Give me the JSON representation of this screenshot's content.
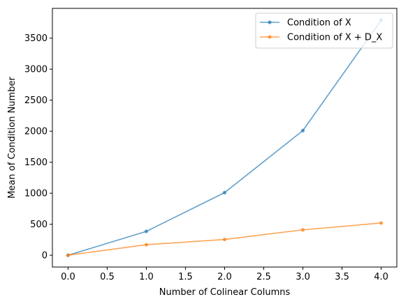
{
  "chart_data": {
    "type": "line",
    "xlabel": "Number of Colinear Columns",
    "ylabel": "Mean of Condition Number",
    "x": [
      0,
      1,
      2,
      3,
      4
    ],
    "series": [
      {
        "name": "Condition of X",
        "color": "#1f77b4",
        "values": [
          0,
          385,
          1010,
          2010,
          3790
        ]
      },
      {
        "name": "Condition of X + D_X",
        "color": "#ff7f0e",
        "values": [
          0,
          170,
          255,
          410,
          520
        ]
      }
    ],
    "xlim": [
      -0.2,
      4.2
    ],
    "ylim": [
      -190,
      3980
    ],
    "xticks": [
      0.0,
      0.5,
      1.0,
      1.5,
      2.0,
      2.5,
      3.0,
      3.5,
      4.0
    ],
    "xtick_labels": [
      "0.0",
      "0.5",
      "1.0",
      "1.5",
      "2.0",
      "2.5",
      "3.0",
      "3.5",
      "4.0"
    ],
    "yticks": [
      0,
      500,
      1000,
      1500,
      2000,
      2500,
      3000,
      3500
    ],
    "ytick_labels": [
      "0",
      "500",
      "1000",
      "1500",
      "2000",
      "2500",
      "3000",
      "3500"
    ],
    "grid": false,
    "legend_position": "top-right",
    "line_opacity": 0.7
  }
}
